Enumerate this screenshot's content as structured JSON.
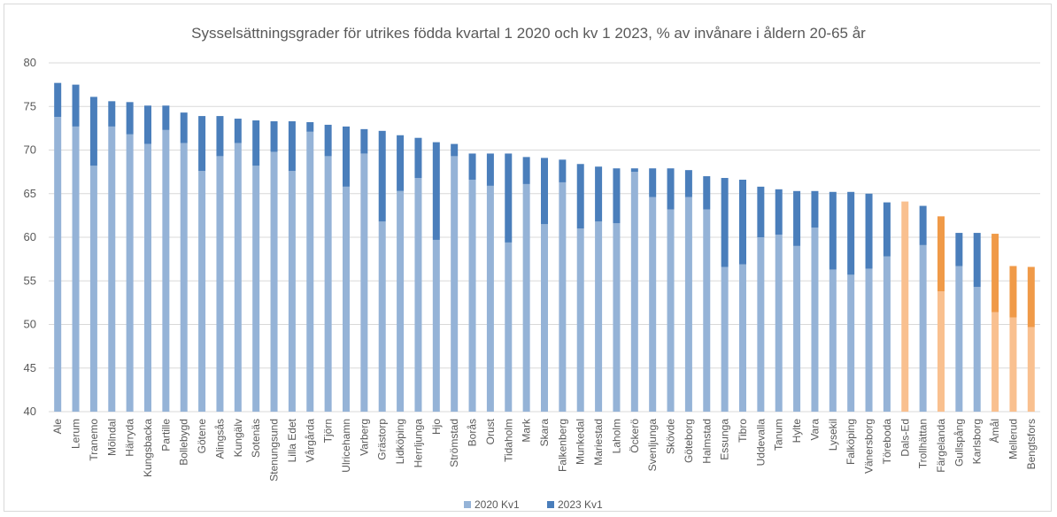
{
  "chart_data": {
    "type": "bar",
    "stacked": "overlay",
    "title": "Sysselsättningsgrader för utrikes födda kvartal 1 2020 och kv 1 2023, % av invånare i åldern 20-65 år",
    "xlabel": "",
    "ylabel": "",
    "ylim": [
      40,
      80
    ],
    "yticks": [
      40,
      45,
      50,
      55,
      60,
      65,
      70,
      75,
      80
    ],
    "grid": true,
    "legend_position": "bottom",
    "colors": {
      "series_2020": "#95b3d7",
      "series_2023": "#4a7ebb",
      "highlight_2020": "#f9c08f",
      "highlight_2023": "#f09a48",
      "grid": "#d9d9d9",
      "text": "#595959"
    },
    "highlighted_categories": [
      "Dals-Ed",
      "Färgelanda",
      "Åmål",
      "Mellerud",
      "Bengtsfors"
    ],
    "categories": [
      "Ale",
      "Lerum",
      "Tranemo",
      "Mölndal",
      "Härryda",
      "Kungsbacka",
      "Partille",
      "Bollebygd",
      "Götene",
      "Alingsås",
      "Kungälv",
      "Sotenäs",
      "Stenungsund",
      "Lilla Edet",
      "Vårgårda",
      "Tjörn",
      "Ulricehamn",
      "Varberg",
      "Grästorp",
      "Lidköping",
      "Herrljunga",
      "Hjo",
      "Strömstad",
      "Borås",
      "Orust",
      "Tidaholm",
      "Mark",
      "Skara",
      "Falkenberg",
      "Munkedal",
      "Mariestad",
      "Laholm",
      "Öckerö",
      "Svenljunga",
      "Skövde",
      "Göteborg",
      "Halmstad",
      "Essunga",
      "Tibro",
      "Uddevalla",
      "Tanum",
      "Hylte",
      "Vara",
      "Lysekil",
      "Falköping",
      "Vänersborg",
      "Töreboda",
      "Dals-Ed",
      "Trollhättan",
      "Färgelanda",
      "Gullspång",
      "Karlsborg",
      "Åmål",
      "Mellerud",
      "Bengtsfors"
    ],
    "series": [
      {
        "name": "2020 Kv1",
        "values": [
          73.8,
          72.7,
          68.2,
          72.7,
          71.8,
          70.7,
          72.3,
          70.8,
          67.6,
          69.3,
          70.8,
          68.2,
          69.8,
          67.6,
          72.1,
          69.3,
          65.8,
          69.6,
          61.8,
          65.3,
          66.8,
          59.7,
          69.3,
          66.6,
          65.9,
          59.4,
          66.1,
          61.5,
          66.3,
          61.0,
          61.8,
          61.6,
          67.5,
          64.6,
          63.2,
          64.6,
          63.2,
          56.6,
          56.9,
          60.0,
          60.3,
          59.0,
          61.1,
          56.3,
          55.7,
          56.4,
          57.8,
          64.1,
          59.1,
          53.8,
          56.7,
          54.3,
          51.4,
          50.8,
          49.7
        ]
      },
      {
        "name": "2023 Kv1",
        "values": [
          77.7,
          77.5,
          76.1,
          75.6,
          75.5,
          75.1,
          75.1,
          74.3,
          73.9,
          73.9,
          73.6,
          73.4,
          73.3,
          73.3,
          73.2,
          72.9,
          72.7,
          72.4,
          72.2,
          71.7,
          71.4,
          70.9,
          70.7,
          69.6,
          69.6,
          69.6,
          69.2,
          69.1,
          68.9,
          68.4,
          68.1,
          67.9,
          67.9,
          67.9,
          67.9,
          67.7,
          67.0,
          66.8,
          66.6,
          65.8,
          65.5,
          65.3,
          65.3,
          65.2,
          65.2,
          65.0,
          64.0,
          64.1,
          63.6,
          62.4,
          60.5,
          60.5,
          60.4,
          56.7,
          56.6
        ]
      }
    ]
  }
}
